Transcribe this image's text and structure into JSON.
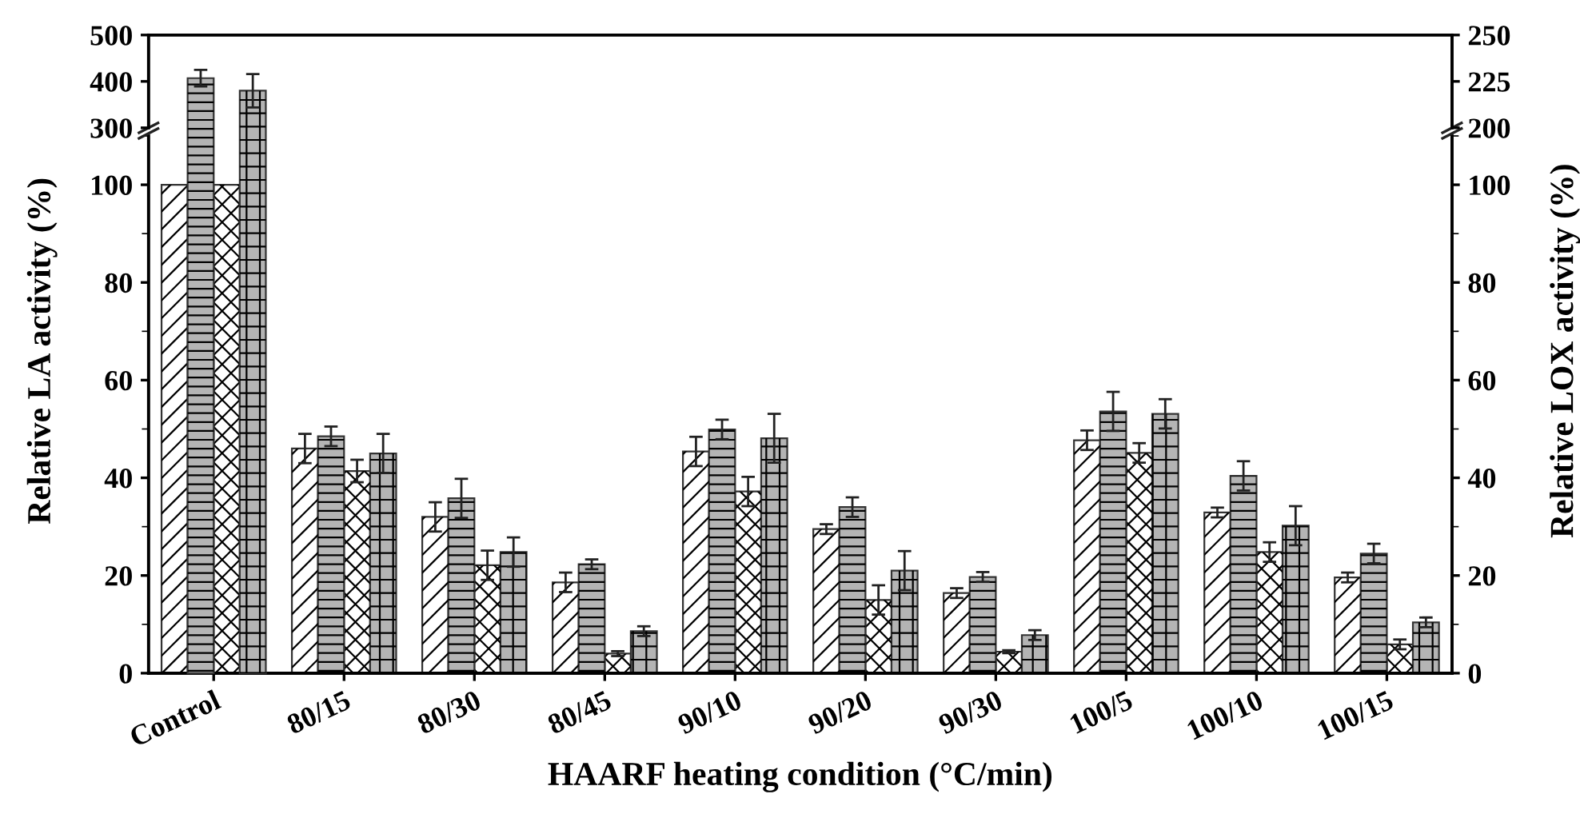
{
  "chart_data": [
    {
      "type": "bar",
      "categories": [
        null,
        null,
        null,
        null,
        null,
        null,
        null,
        null,
        null,
        null
      ],
      "series": [
        {
          "color": "#ffffff",
          "values": [
            null,
            null,
            null,
            null,
            null,
            null,
            null,
            null,
            null,
            null
          ]
        },
        {
          "color": "#b4b4b4",
          "values": [
            407,
            null,
            null,
            null,
            null,
            null,
            null,
            null,
            null,
            null
          ],
          "errors": [
            18,
            null,
            null,
            null,
            null,
            null,
            null,
            null,
            null,
            null
          ]
        },
        {
          "color": "#ffffff",
          "axis": "y2",
          "values": [
            null,
            null,
            null,
            null,
            null,
            null,
            null,
            null,
            null,
            null
          ]
        },
        {
          "color": "#b4b4b4",
          "axis": "y2",
          "values": [
            220,
            null,
            null,
            null,
            null,
            null,
            null,
            null,
            null,
            null
          ],
          "errors": [
            9,
            null,
            null,
            null,
            null,
            null,
            null,
            null,
            null,
            null
          ]
        }
      ],
      "ylim": [
        300,
        500
      ],
      "yticks": [
        300,
        400,
        500
      ],
      "y2lim": [
        200,
        250
      ],
      "y2ticks": [
        200,
        225,
        250
      ],
      "tick_labels": "y",
      "grid": false
    },
    {
      "type": "bar",
      "categories": [
        "Control",
        "80/15",
        "80/30",
        "80/45",
        "90/10",
        "90/20",
        "90/30",
        "100/5",
        "100/10",
        "100/15"
      ],
      "xlabel": "HAARF heating condition (°C/min)",
      "ylabel": "Relative LA activity (%)",
      "y2label": "Relative LOX activity (%)",
      "series": [
        {
          "color": "#ffffff",
          "values": [
            100,
            46,
            32,
            18.6,
            45.4,
            29.5,
            16.4,
            47.7,
            32.9,
            19.6
          ],
          "errors": [
            null,
            3,
            3,
            2,
            3,
            1,
            1,
            2,
            1,
            1
          ]
        },
        {
          "color": "#b4b4b4",
          "values": [
            null,
            48.5,
            35.8,
            22.3,
            49.9,
            34,
            19.7,
            53.6,
            40.4,
            24.5
          ],
          "errors": [
            null,
            2,
            4,
            1,
            2,
            2,
            1,
            4,
            3,
            2
          ]
        },
        {
          "color": "#ffffff",
          "axis": "y2",
          "values": [
            100,
            41.4,
            22.1,
            4,
            37.2,
            15,
            4.4,
            45.1,
            24.8,
            5.9
          ],
          "errors": [
            null,
            2.3,
            3,
            0.5,
            3,
            3,
            0.3,
            2,
            2,
            1
          ]
        },
        {
          "color": "#b4b4b4",
          "axis": "y2",
          "values": [
            null,
            45,
            24.8,
            8.6,
            48.1,
            21,
            7.8,
            53.1,
            30.2,
            10.4
          ],
          "errors": [
            null,
            4,
            3,
            1,
            5,
            4,
            1,
            3,
            4,
            1
          ]
        }
      ],
      "ylim": [
        0,
        110
      ],
      "yticks": [
        0,
        20,
        40,
        60,
        80,
        100
      ],
      "y2lim": [
        0,
        110
      ],
      "y2ticks": [
        0,
        20,
        40,
        60,
        80,
        100
      ],
      "grid": false
    }
  ]
}
